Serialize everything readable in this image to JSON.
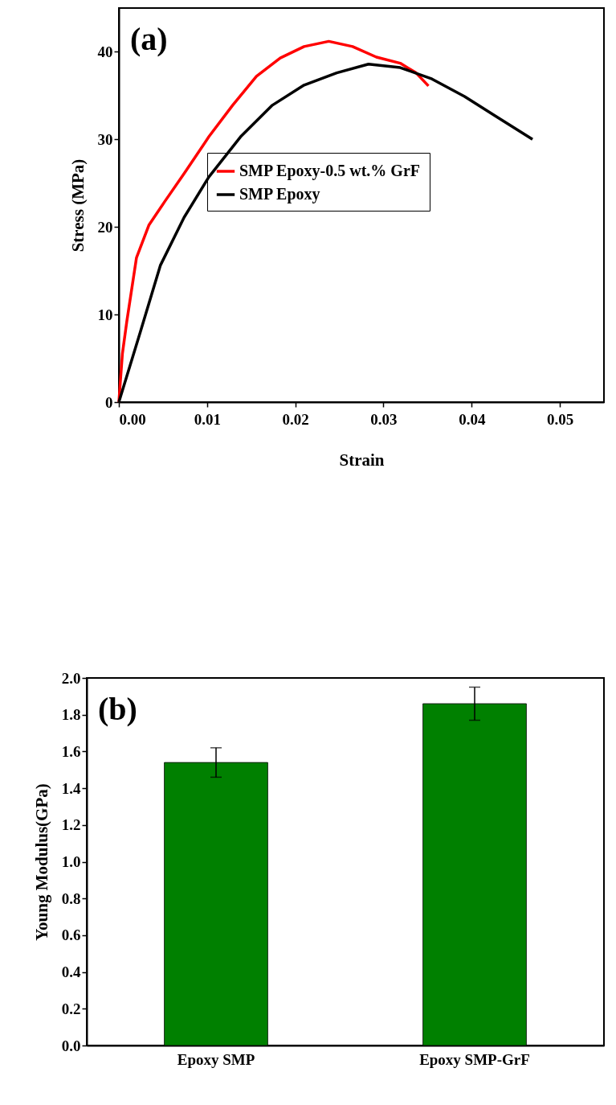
{
  "chart_data": [
    {
      "type": "line",
      "xlabel": "Strain",
      "ylabel": "Stress (MPa)",
      "annotations": [
        "(a)"
      ],
      "legend": "center",
      "grid": false,
      "line_style": "solid",
      "marker": "none",
      "xlim": [
        0,
        0.055
      ],
      "xticks": [
        {
          "value": 0,
          "label": "0.00"
        },
        0.01,
        0.02,
        0.03,
        0.04,
        0.05
      ],
      "ylim": [
        0,
        45
      ],
      "yticks": [
        0,
        10,
        20,
        30,
        40
      ],
      "series": [
        {
          "name": "SMP Epoxy-0.5 wt.% GrF",
          "color": "#ff0000",
          "x": [
            0,
            0.0004,
            0.0009,
            0.002,
            0.0034,
            0.0052,
            0.0074,
            0.0102,
            0.0129,
            0.0156,
            0.0183,
            0.021,
            0.0238,
            0.0265,
            0.0292,
            0.0319,
            0.0337,
            0.0351
          ],
          "values": [
            0,
            5.5,
            9.2,
            16.5,
            20.2,
            22.9,
            26.1,
            30.3,
            33.9,
            37.2,
            39.3,
            40.6,
            41.2,
            40.6,
            39.4,
            38.7,
            37.6,
            36.1
          ]
        },
        {
          "name": "SMP Epoxy",
          "color": "#000000",
          "x": [
            0,
            0.0024,
            0.0047,
            0.0074,
            0.0102,
            0.0138,
            0.0174,
            0.021,
            0.0247,
            0.0283,
            0.0319,
            0.0355,
            0.0392,
            0.0428,
            0.0469
          ],
          "values": [
            0,
            7.9,
            15.6,
            21.1,
            25.7,
            30.3,
            33.9,
            36.2,
            37.6,
            38.6,
            38.2,
            36.9,
            34.9,
            32.6,
            30.0
          ]
        }
      ]
    },
    {
      "type": "bar",
      "ylabel": "Young Modulus(GPa)",
      "annotations": [
        "(b)"
      ],
      "grid": false,
      "categories": [
        "Epoxy SMP",
        "Epoxy SMP-GrF"
      ],
      "values": [
        1.54,
        1.86
      ],
      "errors": [
        0.08,
        0.09
      ],
      "color": "#008000",
      "ylim": [
        0,
        2.0
      ],
      "yticks": [
        {
          "value": 0,
          "label": "0.0"
        },
        0.2,
        0.4,
        0.6,
        0.8,
        {
          "value": 1,
          "label": "1.0"
        },
        1.2,
        1.4,
        1.6,
        1.8,
        {
          "value": 2,
          "label": "2.0"
        }
      ]
    }
  ]
}
